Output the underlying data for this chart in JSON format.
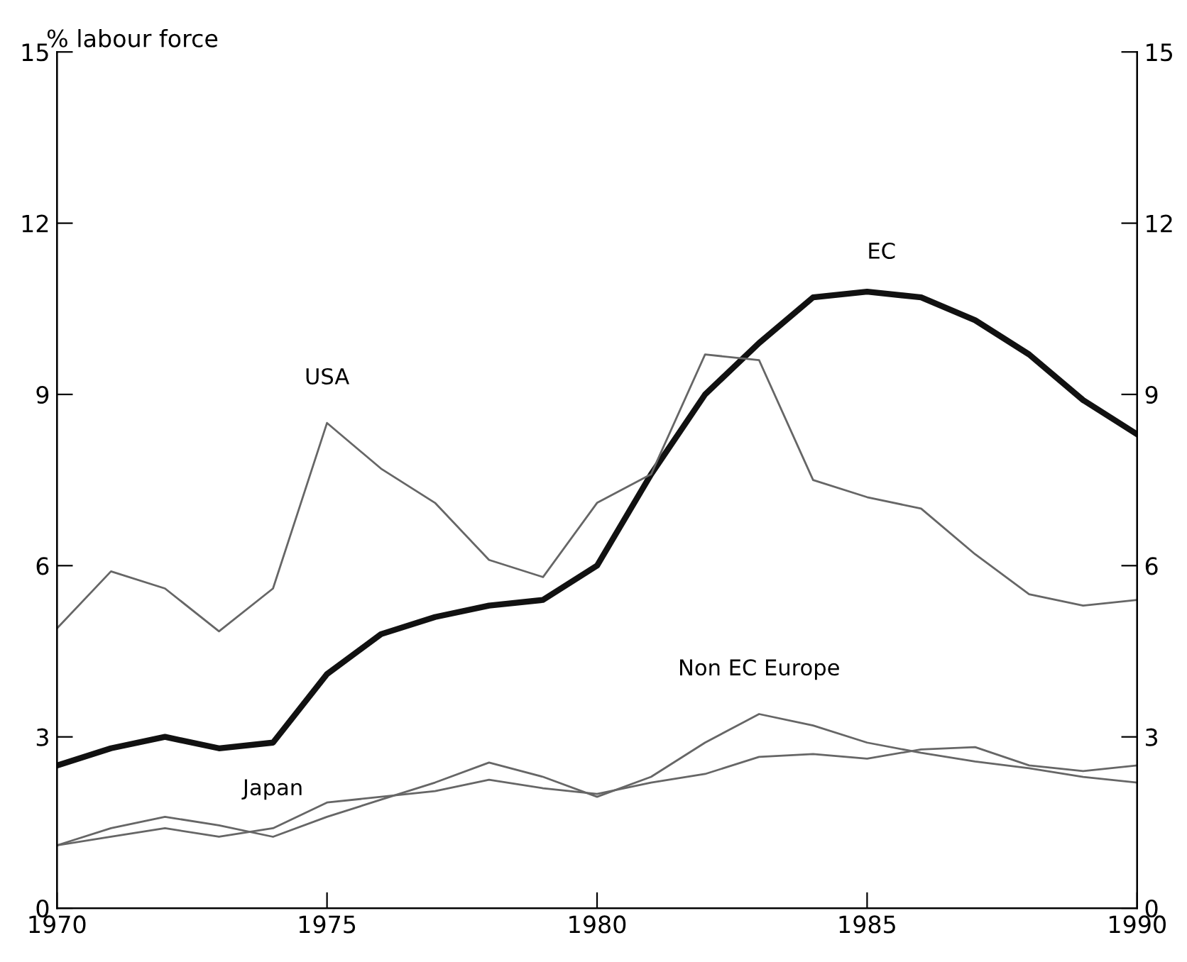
{
  "chart_data": {
    "type": "line",
    "ylabel": "% labour force",
    "x": [
      1970,
      1971,
      1972,
      1973,
      1974,
      1975,
      1976,
      1977,
      1978,
      1979,
      1980,
      1981,
      1982,
      1983,
      1984,
      1985,
      1986,
      1987,
      1988,
      1989,
      1990
    ],
    "series": [
      {
        "name": "EC",
        "color": "#111111",
        "values": [
          2.5,
          2.8,
          3.0,
          2.8,
          2.9,
          4.1,
          4.8,
          5.1,
          5.3,
          5.4,
          6.0,
          7.6,
          9.0,
          9.9,
          10.7,
          10.8,
          10.7,
          10.3,
          9.7,
          8.9,
          8.3
        ]
      },
      {
        "name": "USA",
        "color": "#666666",
        "values": [
          4.9,
          5.9,
          5.6,
          4.85,
          5.6,
          8.5,
          7.7,
          7.1,
          6.1,
          5.8,
          7.1,
          7.6,
          9.7,
          9.6,
          7.5,
          7.2,
          7.0,
          6.2,
          5.5,
          5.3,
          5.4
        ]
      },
      {
        "name": "Non EC Europe",
        "color": "#666666",
        "values": [
          1.1,
          1.4,
          1.6,
          1.45,
          1.25,
          1.6,
          1.9,
          2.2,
          2.55,
          2.3,
          1.95,
          2.3,
          2.9,
          3.4,
          3.2,
          2.9,
          2.72,
          2.57,
          2.45,
          2.3,
          2.2
        ]
      },
      {
        "name": "Japan",
        "color": "#666666",
        "values": [
          1.1,
          1.25,
          1.4,
          1.25,
          1.4,
          1.85,
          1.95,
          2.05,
          2.25,
          2.1,
          2.0,
          2.2,
          2.35,
          2.65,
          2.7,
          2.62,
          2.78,
          2.82,
          2.5,
          2.4,
          2.5
        ]
      }
    ],
    "xlim": [
      1970,
      1990
    ],
    "xticks": [
      1970,
      1975,
      1980,
      1985,
      1990
    ],
    "ylim": [
      0,
      15
    ],
    "yticks": [
      0,
      3,
      6,
      9,
      12,
      15
    ],
    "y2lim": [
      0,
      15
    ],
    "y2ticks": [
      0,
      3,
      6,
      9,
      12,
      15
    ],
    "grid": false,
    "legend": false,
    "marker": "none",
    "line_style": "solid"
  }
}
